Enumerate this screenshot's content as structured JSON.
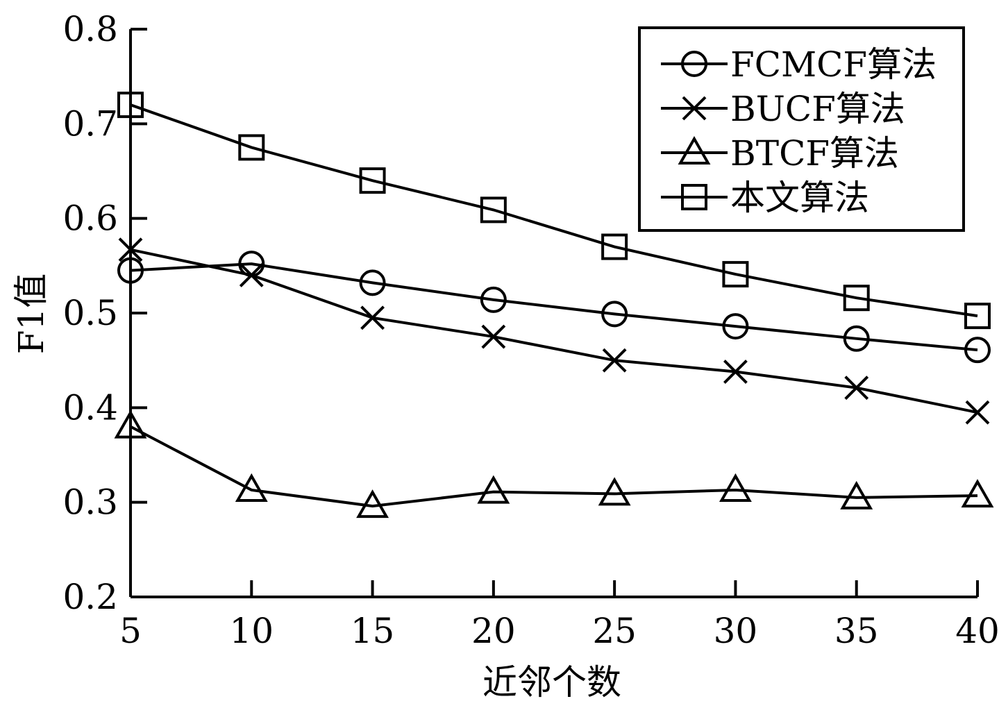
{
  "chart_data": {
    "type": "line",
    "title": "",
    "xlabel": "近邻个数",
    "ylabel": "F1值",
    "x": [
      5,
      10,
      15,
      20,
      25,
      30,
      35,
      40
    ],
    "x_tick_labels": [
      "5",
      "10",
      "15",
      "20",
      "25",
      "30",
      "35",
      "40"
    ],
    "xlim": [
      5,
      40
    ],
    "ylim": [
      0.2,
      0.8
    ],
    "y_ticks": [
      0.2,
      0.3,
      0.4,
      0.5,
      0.6,
      0.7,
      0.8
    ],
    "y_tick_labels": [
      "0.2",
      "0.3",
      "0.4",
      "0.5",
      "0.6",
      "0.7",
      "0.8"
    ],
    "grid": false,
    "legend_position": "top-right",
    "series": [
      {
        "name": "FCMCF算法",
        "marker": "circle",
        "values": [
          0.545,
          0.552,
          0.532,
          0.514,
          0.499,
          0.486,
          0.473,
          0.461
        ]
      },
      {
        "name": "BUCF算法",
        "marker": "x",
        "values": [
          0.567,
          0.54,
          0.495,
          0.475,
          0.45,
          0.438,
          0.421,
          0.395
        ]
      },
      {
        "name": "BTCF算法",
        "marker": "triangle",
        "values": [
          0.38,
          0.313,
          0.296,
          0.311,
          0.309,
          0.313,
          0.305,
          0.307
        ]
      },
      {
        "name": "本文算法",
        "marker": "square",
        "values": [
          0.72,
          0.675,
          0.64,
          0.609,
          0.57,
          0.541,
          0.516,
          0.497
        ]
      }
    ]
  }
}
